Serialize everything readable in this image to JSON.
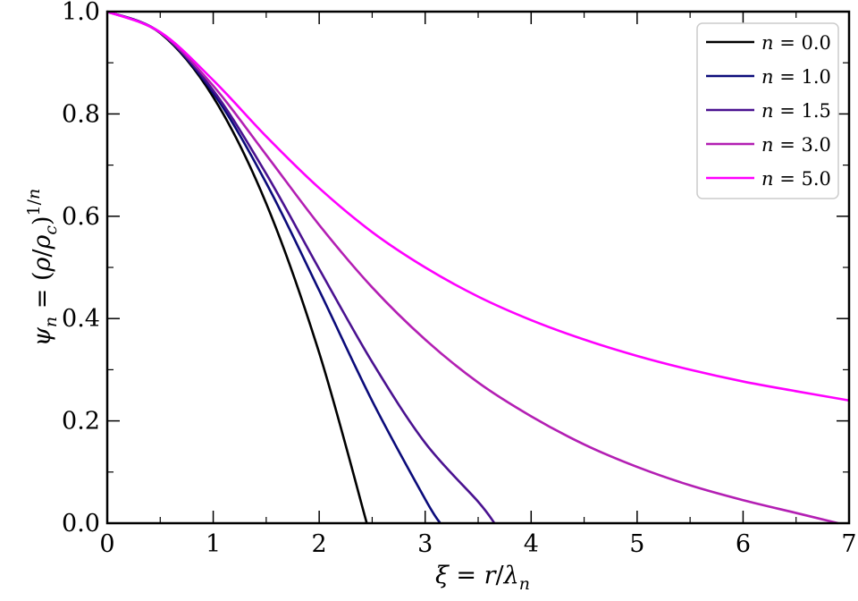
{
  "chart_data": {
    "type": "line",
    "xlabel": "ξ = r/λ_n",
    "ylabel": "ψ_n = (ρ/ρ_c)^{1/n}",
    "xlim": [
      0,
      7
    ],
    "ylim": [
      0,
      1.0
    ],
    "xticks": [
      "0",
      "1",
      "2",
      "3",
      "4",
      "5",
      "6",
      "7"
    ],
    "yticks": [
      "0.0",
      "0.2",
      "0.4",
      "0.6",
      "0.8",
      "1.0"
    ],
    "grid": false,
    "legend_position": "top-right",
    "series": [
      {
        "name": "n = 0.0",
        "color": "#000000",
        "x": [
          0,
          0.5,
          1.0,
          1.5,
          2.0,
          2.449
        ],
        "y": [
          1.0,
          0.958,
          0.833,
          0.625,
          0.333,
          0.0
        ]
      },
      {
        "name": "n = 1.0",
        "color": "#0b0b7a",
        "x": [
          0,
          0.5,
          1.0,
          1.5,
          2.0,
          2.5,
          3.0,
          3.1416
        ],
        "y": [
          1.0,
          0.959,
          0.841,
          0.665,
          0.455,
          0.239,
          0.047,
          0.0
        ]
      },
      {
        "name": "n = 1.5",
        "color": "#4a1290",
        "x": [
          0,
          0.5,
          1.0,
          1.5,
          2.0,
          2.5,
          3.0,
          3.5,
          3.654
        ],
        "y": [
          1.0,
          0.959,
          0.846,
          0.683,
          0.497,
          0.315,
          0.157,
          0.042,
          0.0
        ]
      },
      {
        "name": "n = 3.0",
        "color": "#b31fb3",
        "x": [
          0,
          0.5,
          1.0,
          1.5,
          2.0,
          2.5,
          3.0,
          3.5,
          4.0,
          4.5,
          5.0,
          5.5,
          6.0,
          6.5,
          6.897
        ],
        "y": [
          1.0,
          0.959,
          0.855,
          0.72,
          0.583,
          0.461,
          0.359,
          0.275,
          0.209,
          0.154,
          0.11,
          0.074,
          0.045,
          0.02,
          0.0
        ]
      },
      {
        "name": "n = 5.0",
        "color": "#ff00ff",
        "x": [
          0,
          0.5,
          1.0,
          1.5,
          2.0,
          2.5,
          3.0,
          3.5,
          4.0,
          4.5,
          5.0,
          5.5,
          6.0,
          6.5,
          7.0
        ],
        "y": [
          1.0,
          0.96,
          0.866,
          0.756,
          0.655,
          0.569,
          0.5,
          0.443,
          0.397,
          0.359,
          0.327,
          0.3,
          0.277,
          0.258,
          0.24
        ]
      }
    ]
  }
}
